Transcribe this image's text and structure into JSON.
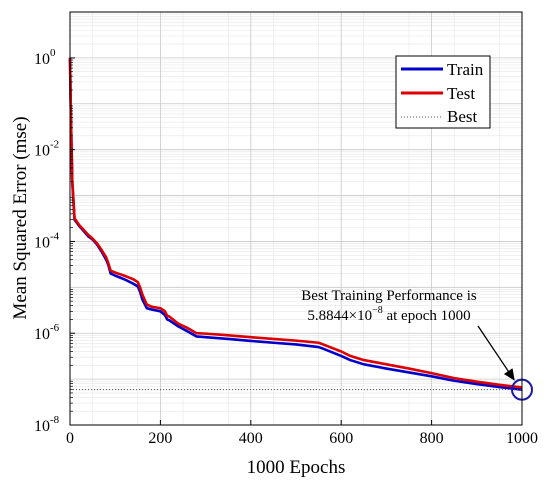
{
  "chart_data": {
    "type": "line",
    "xlabel": "1000 Epochs",
    "ylabel": "Mean Squared Error  (mse)",
    "x_ticks": [
      "0",
      "200",
      "400",
      "600",
      "800",
      "1000"
    ],
    "xlim": [
      0,
      1000
    ],
    "ylim": [
      1e-08,
      10
    ],
    "y_scale": "log",
    "y_ticks": [
      {
        "value": 1.0,
        "mantissa": "10",
        "exp": "0"
      },
      {
        "value": 0.01,
        "mantissa": "10",
        "exp": "-2"
      },
      {
        "value": 0.0001,
        "mantissa": "10",
        "exp": "-4"
      },
      {
        "value": 1e-06,
        "mantissa": "10",
        "exp": "-6"
      },
      {
        "value": 1e-08,
        "mantissa": "10",
        "exp": "-8"
      }
    ],
    "grid": true,
    "legend_position": "top-right",
    "series": [
      {
        "name": "Train",
        "color": "#0000cc",
        "x": [
          0,
          2,
          5,
          10,
          20,
          30,
          40,
          50,
          60,
          70,
          80,
          85,
          90,
          100,
          120,
          140,
          150,
          155,
          160,
          170,
          180,
          200,
          210,
          215,
          220,
          240,
          260,
          280,
          300,
          350,
          400,
          450,
          500,
          550,
          560,
          600,
          620,
          650,
          700,
          750,
          800,
          850,
          900,
          950,
          1000
        ],
        "y": [
          1.0,
          0.05,
          0.002,
          0.0003,
          0.00022,
          0.00017,
          0.00013,
          0.00011,
          8.5e-05,
          6e-05,
          4e-05,
          3e-05,
          2e-05,
          1.8e-05,
          1.5e-05,
          1.2e-05,
          1.05e-05,
          8e-06,
          5.5e-06,
          3.5e-06,
          3.3e-06,
          3e-06,
          2.5e-06,
          2e-06,
          1.9e-06,
          1.4e-06,
          1.1e-06,
          8.5e-07,
          8.2e-07,
          7.5e-07,
          6.8e-07,
          6.2e-07,
          5.7e-07,
          5e-07,
          4.6e-07,
          3.2e-07,
          2.6e-07,
          2.1e-07,
          1.7e-07,
          1.4e-07,
          1.15e-07,
          9.2e-08,
          7.8e-08,
          6.7e-08,
          5.8844e-08
        ]
      },
      {
        "name": "Test",
        "color": "#dd0000",
        "x": [
          0,
          2,
          5,
          10,
          20,
          30,
          40,
          50,
          60,
          70,
          80,
          85,
          90,
          100,
          120,
          140,
          150,
          155,
          160,
          170,
          180,
          200,
          210,
          215,
          220,
          240,
          260,
          280,
          300,
          350,
          400,
          450,
          500,
          550,
          560,
          600,
          620,
          650,
          700,
          750,
          800,
          850,
          900,
          950,
          1000
        ],
        "y": [
          1.0,
          0.06,
          0.0022,
          0.00032,
          0.00023,
          0.00018,
          0.00014,
          0.000115,
          9e-05,
          6.5e-05,
          4.5e-05,
          3.3e-05,
          2.3e-05,
          2.1e-05,
          1.8e-05,
          1.5e-05,
          1.3e-05,
          1e-05,
          7e-06,
          4.2e-06,
          3.8e-06,
          3.5e-06,
          3e-06,
          2.4e-06,
          2.3e-06,
          1.6e-06,
          1.3e-06,
          1e-06,
          9.8e-07,
          9e-07,
          8.2e-07,
          7.5e-07,
          6.9e-07,
          6.2e-07,
          5.7e-07,
          4e-07,
          3.2e-07,
          2.6e-07,
          2.1e-07,
          1.7e-07,
          1.35e-07,
          1.05e-07,
          8.8e-08,
          7.5e-08,
          6.6e-08
        ]
      }
    ],
    "best_series_name": "Best",
    "best_value": 5.8844e-08,
    "best_epoch": 1000,
    "annotation": {
      "line1": "Best Training Performance is",
      "line2_value": "5.8844×10",
      "line2_exp": "−8",
      "line2_suffix": "  at epoch 1000",
      "arrow_target": {
        "x": 1000,
        "y": 5.8844e-08
      }
    }
  }
}
